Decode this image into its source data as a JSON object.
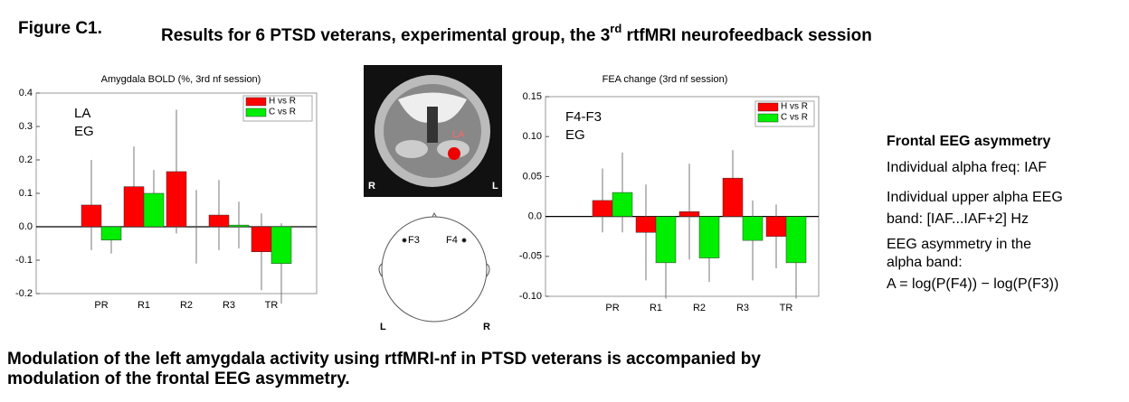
{
  "figure_label": "Figure C1.",
  "title": {
    "main": "Results for 6 PTSD veterans, experimental group, the 3",
    "sup": "rd",
    "rest": " rtfMRI neurofeedback session"
  },
  "chart_data": [
    {
      "type": "bar",
      "title": "Amygdala BOLD (%, 3rd nf session)",
      "annotations": [
        "LA",
        "EG"
      ],
      "categories": [
        "PR",
        "R1",
        "R2",
        "R3",
        "TR"
      ],
      "series": [
        {
          "name": "H vs R",
          "color": "#ff0000",
          "values": [
            0.065,
            0.12,
            0.165,
            0.035,
            -0.075
          ],
          "errors": [
            0.135,
            0.12,
            0.185,
            0.105,
            0.115
          ]
        },
        {
          "name": "C vs R",
          "color": "#00ee00",
          "values": [
            -0.04,
            0.1,
            0.0,
            0.005,
            -0.11
          ],
          "errors": [
            0.04,
            0.07,
            0.11,
            0.07,
            0.12
          ]
        }
      ],
      "ylim": [
        -0.2,
        0.4
      ],
      "yticks": [
        -0.2,
        -0.1,
        {
          "value": 0,
          "label": "0.0"
        },
        0.1,
        0.2,
        0.3,
        0.4
      ],
      "legend": "upper right"
    },
    {
      "type": "bar",
      "title": "FEA change (3rd nf session)",
      "annotations": [
        "F4-F3",
        "EG"
      ],
      "categories": [
        "PR",
        "R1",
        "R2",
        "R3",
        "TR"
      ],
      "series": [
        {
          "name": "H vs R",
          "color": "#ff0000",
          "values": [
            0.02,
            -0.02,
            0.006,
            0.048,
            -0.025
          ],
          "errors": [
            0.04,
            0.06,
            0.06,
            0.035,
            0.04
          ]
        },
        {
          "name": "C vs R",
          "color": "#00ee00",
          "values": [
            0.03,
            -0.058,
            -0.052,
            -0.03,
            -0.058
          ],
          "errors": [
            0.05,
            0.045,
            0.03,
            0.05,
            0.045
          ]
        }
      ],
      "ylim": [
        -0.1,
        0.15
      ],
      "yticks": [
        {
          "value": -0.1,
          "label": "-0.10"
        },
        -0.05,
        {
          "value": 0,
          "label": "0.0"
        },
        0.05,
        {
          "value": 0.1,
          "label": "0.10"
        },
        0.15
      ],
      "legend": "upper right"
    }
  ],
  "brain_labels": [
    "LA",
    "R",
    "L"
  ],
  "head_labels": [
    "F3",
    "F4",
    "L",
    "R"
  ],
  "side_panel": {
    "heading": "Frontal EEG asymmetry",
    "lines": [
      "Individual alpha freq:  IAF",
      "Individual upper alpha EEG",
      "band: [IAF...IAF+2]  Hz",
      "EEG asymmetry in the",
      "alpha band:",
      "A = log(P(F4)) − log(P(F3))"
    ]
  },
  "caption": [
    "Modulation of the left amygdala activity using rtfMRI-nf in PTSD veterans is accompanied by",
    "modulation of the frontal EEG asymmetry."
  ]
}
